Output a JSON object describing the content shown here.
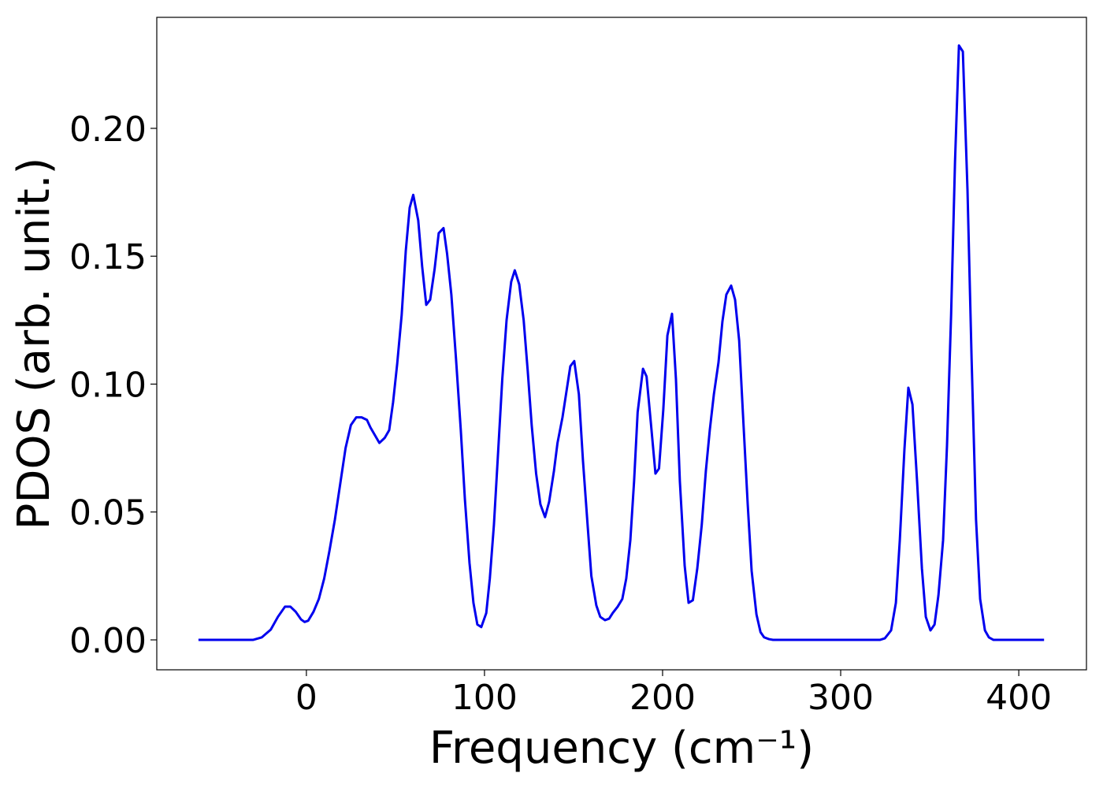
{
  "chart_data": {
    "type": "line",
    "xlabel": "Frequency (cm⁻¹)",
    "ylabel": "PDOS (arb. unit.)",
    "xlim": [
      -84,
      438
    ],
    "ylim": [
      -0.0117,
      0.2434
    ],
    "xticks": [
      0,
      100,
      200,
      300,
      400
    ],
    "yticks": [
      {
        "value": 0,
        "label": "0.00"
      },
      {
        "value": 0.05,
        "label": "0.05"
      },
      {
        "value": 0.1,
        "label": "0.10"
      },
      {
        "value": 0.15,
        "label": "0.15"
      },
      {
        "value": 0.2,
        "label": "0.20"
      }
    ],
    "grid": false,
    "series": [
      {
        "color": "#0000ee",
        "x": [
          -60.6,
          -30,
          -25,
          -20,
          -16,
          -12,
          -9,
          -6,
          -3,
          -1,
          1,
          4,
          7,
          10,
          13,
          16,
          19,
          22,
          25,
          28,
          31,
          34,
          36,
          41,
          44,
          46.5,
          48.7,
          51,
          53.5,
          55.8,
          58,
          60,
          62.8,
          65,
          67.3,
          69.5,
          72,
          74.3,
          77,
          79,
          81.4,
          84,
          86.7,
          89,
          91.6,
          93.8,
          96,
          98.2,
          101,
          103,
          105.3,
          107.5,
          110,
          112.4,
          115,
          117,
          119.5,
          122,
          124.3,
          126.5,
          129,
          131.4,
          134,
          136.3,
          139,
          141,
          143.8,
          146,
          148.2,
          150.4,
          153,
          155.3,
          158,
          160,
          162.8,
          165,
          167.7,
          170,
          172,
          174.8,
          177.4,
          179.6,
          181.9,
          184,
          186,
          189,
          191,
          193.4,
          196,
          198,
          200.4,
          202.7,
          205.3,
          207.5,
          209.7,
          212.4,
          214.6,
          217,
          219.5,
          222,
          224.3,
          226.5,
          228.8,
          231.4,
          233.6,
          235.8,
          238.5,
          240.7,
          243,
          245,
          247.8,
          250,
          252.7,
          255,
          257,
          259.7,
          262,
          322,
          324.8,
          328.3,
          331,
          333.2,
          335.8,
          338,
          340.3,
          342.9,
          345.6,
          347.8,
          350.4,
          352.7,
          354.9,
          357.5,
          359.7,
          362,
          364.2,
          366.4,
          368.6,
          371.2,
          373.5,
          376,
          378.3,
          381,
          383.2,
          385.8,
          414.2
        ],
        "values": [
          0,
          0,
          0.001,
          0.004,
          0.009,
          0.013,
          0.013,
          0.011,
          0.008,
          0.007,
          0.0075,
          0.011,
          0.016,
          0.024,
          0.035,
          0.047,
          0.061,
          0.075,
          0.084,
          0.087,
          0.087,
          0.086,
          0.083,
          0.077,
          0.079,
          0.082,
          0.093,
          0.108,
          0.127,
          0.152,
          0.169,
          0.174,
          0.164,
          0.146,
          0.131,
          0.133,
          0.145,
          0.159,
          0.161,
          0.151,
          0.135,
          0.11,
          0.082,
          0.055,
          0.03,
          0.0145,
          0.006,
          0.005,
          0.0105,
          0.024,
          0.045,
          0.0715,
          0.102,
          0.125,
          0.14,
          0.1445,
          0.139,
          0.125,
          0.105,
          0.084,
          0.065,
          0.053,
          0.048,
          0.054,
          0.066,
          0.077,
          0.087,
          0.097,
          0.107,
          0.109,
          0.096,
          0.07,
          0.044,
          0.025,
          0.0135,
          0.009,
          0.0077,
          0.0083,
          0.0105,
          0.013,
          0.016,
          0.024,
          0.039,
          0.062,
          0.089,
          0.106,
          0.103,
          0.085,
          0.065,
          0.067,
          0.09,
          0.119,
          0.1275,
          0.102,
          0.062,
          0.029,
          0.0145,
          0.0155,
          0.028,
          0.045,
          0.066,
          0.082,
          0.096,
          0.1085,
          0.1245,
          0.135,
          0.1385,
          0.133,
          0.117,
          0.09,
          0.053,
          0.027,
          0.01,
          0.003,
          0.001,
          0.0003,
          0,
          0,
          0.0006,
          0.0037,
          0.0145,
          0.039,
          0.0745,
          0.0986,
          0.092,
          0.062,
          0.028,
          0.009,
          0.0037,
          0.006,
          0.0175,
          0.039,
          0.076,
          0.127,
          0.187,
          0.2324,
          0.23,
          0.176,
          0.11,
          0.047,
          0.016,
          0.0037,
          0.001,
          0,
          0
        ]
      }
    ]
  }
}
